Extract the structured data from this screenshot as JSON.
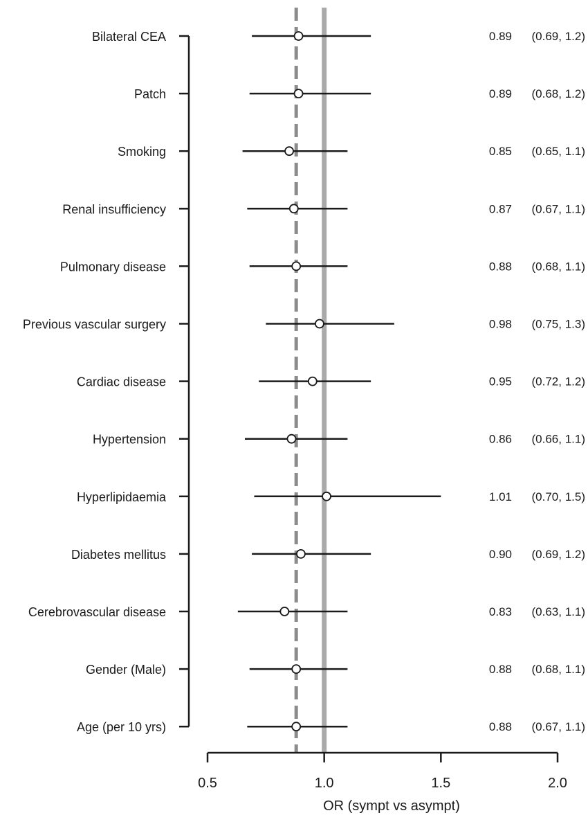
{
  "chart_data": {
    "type": "forest",
    "xlabel": "OR (sympt vs asympt)",
    "xlim": [
      0.5,
      2.0
    ],
    "x_ticks": [
      0.5,
      1.0,
      1.5,
      2.0
    ],
    "x_tick_labels": [
      "0.5",
      "1.0",
      "1.5",
      "2.0"
    ],
    "reference_line": 1.0,
    "pooled_line": 0.88,
    "grid": false,
    "rows": [
      {
        "label": "Bilateral CEA",
        "or": 0.89,
        "lower": 0.69,
        "upper": 1.2,
        "or_text": "0.89",
        "ci_text": "(0.69, 1.2)"
      },
      {
        "label": "Patch",
        "or": 0.89,
        "lower": 0.68,
        "upper": 1.2,
        "or_text": "0.89",
        "ci_text": "(0.68, 1.2)"
      },
      {
        "label": "Smoking",
        "or": 0.85,
        "lower": 0.65,
        "upper": 1.1,
        "or_text": "0.85",
        "ci_text": "(0.65, 1.1)"
      },
      {
        "label": "Renal insufficiency",
        "or": 0.87,
        "lower": 0.67,
        "upper": 1.1,
        "or_text": "0.87",
        "ci_text": "(0.67, 1.1)"
      },
      {
        "label": "Pulmonary disease",
        "or": 0.88,
        "lower": 0.68,
        "upper": 1.1,
        "or_text": "0.88",
        "ci_text": "(0.68, 1.1)"
      },
      {
        "label": "Previous vascular surgery",
        "or": 0.98,
        "lower": 0.75,
        "upper": 1.3,
        "or_text": "0.98",
        "ci_text": "(0.75, 1.3)"
      },
      {
        "label": "Cardiac disease",
        "or": 0.95,
        "lower": 0.72,
        "upper": 1.2,
        "or_text": "0.95",
        "ci_text": "(0.72, 1.2)"
      },
      {
        "label": "Hypertension",
        "or": 0.86,
        "lower": 0.66,
        "upper": 1.1,
        "or_text": "0.86",
        "ci_text": "(0.66, 1.1)"
      },
      {
        "label": "Hyperlipidaemia",
        "or": 1.01,
        "lower": 0.7,
        "upper": 1.5,
        "or_text": "1.01",
        "ci_text": "(0.70, 1.5)"
      },
      {
        "label": "Diabetes mellitus",
        "or": 0.9,
        "lower": 0.69,
        "upper": 1.2,
        "or_text": "0.90",
        "ci_text": "(0.69, 1.2)"
      },
      {
        "label": "Cerebrovascular disease",
        "or": 0.83,
        "lower": 0.63,
        "upper": 1.1,
        "or_text": "0.83",
        "ci_text": "(0.63, 1.1)"
      },
      {
        "label": "Gender (Male)",
        "or": 0.88,
        "lower": 0.68,
        "upper": 1.1,
        "or_text": "0.88",
        "ci_text": "(0.68, 1.1)"
      },
      {
        "label": "Age (per 10 yrs)",
        "or": 0.88,
        "lower": 0.67,
        "upper": 1.1,
        "or_text": "0.88",
        "ci_text": "(0.67, 1.1)"
      }
    ]
  },
  "colors": {
    "text": "#1a1a1a",
    "ci_line": "#1a1a1a",
    "reference_line": "#aaaaaa",
    "pooled_line": "#8c8c8c"
  }
}
